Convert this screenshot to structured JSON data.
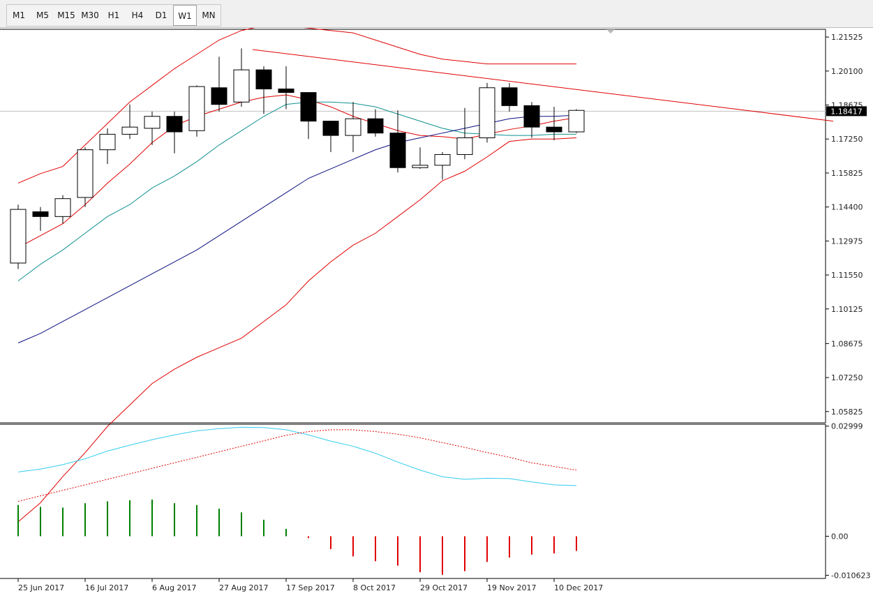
{
  "toolbar": {
    "timeframes": [
      "M1",
      "M5",
      "M15",
      "M30",
      "H1",
      "H4",
      "D1",
      "W1",
      "MN"
    ],
    "active": "W1"
  },
  "current_price_label": "1.18417",
  "chart_data": [
    {
      "type": "candlestick",
      "title": "",
      "price_axis_ticks": [
        "1.21525",
        "1.20100",
        "1.18675",
        "1.17250",
        "1.15825",
        "1.14400",
        "1.12975",
        "1.11550",
        "1.10125",
        "1.08675",
        "1.07250",
        "1.05825"
      ],
      "ylim": [
        1.0535,
        1.2185
      ],
      "x_tick_labels": [
        "25 Jun 2017",
        "16 Jul 2017",
        "6 Aug 2017",
        "27 Aug 2017",
        "17 Sep 2017",
        "8 Oct 2017",
        "29 Oct 2017",
        "19 Nov 2017",
        "10 Dec 2017"
      ],
      "candles": [
        {
          "o": 1.1205,
          "h": 1.145,
          "l": 1.118,
          "c": 1.143
        },
        {
          "o": 1.142,
          "h": 1.144,
          "l": 1.134,
          "c": 1.14
        },
        {
          "o": 1.14,
          "h": 1.149,
          "l": 1.137,
          "c": 1.1475
        },
        {
          "o": 1.148,
          "h": 1.169,
          "l": 1.144,
          "c": 1.168
        },
        {
          "o": 1.168,
          "h": 1.177,
          "l": 1.162,
          "c": 1.1745
        },
        {
          "o": 1.1745,
          "h": 1.187,
          "l": 1.1725,
          "c": 1.1775
        },
        {
          "o": 1.177,
          "h": 1.184,
          "l": 1.17,
          "c": 1.182
        },
        {
          "o": 1.182,
          "h": 1.184,
          "l": 1.1665,
          "c": 1.1755
        },
        {
          "o": 1.176,
          "h": 1.195,
          "l": 1.1735,
          "c": 1.1945
        },
        {
          "o": 1.194,
          "h": 1.207,
          "l": 1.184,
          "c": 1.187
        },
        {
          "o": 1.188,
          "h": 1.2105,
          "l": 1.186,
          "c": 1.2015
        },
        {
          "o": 1.2015,
          "h": 1.203,
          "l": 1.183,
          "c": 1.1935
        },
        {
          "o": 1.1935,
          "h": 1.203,
          "l": 1.185,
          "c": 1.192
        },
        {
          "o": 1.192,
          "h": 1.192,
          "l": 1.1725,
          "c": 1.18
        },
        {
          "o": 1.18,
          "h": 1.18,
          "l": 1.167,
          "c": 1.174
        },
        {
          "o": 1.174,
          "h": 1.188,
          "l": 1.167,
          "c": 1.181
        },
        {
          "o": 1.181,
          "h": 1.185,
          "l": 1.1735,
          "c": 1.175
        },
        {
          "o": 1.175,
          "h": 1.1845,
          "l": 1.1585,
          "c": 1.1605
        },
        {
          "o": 1.1605,
          "h": 1.169,
          "l": 1.16,
          "c": 1.1615
        },
        {
          "o": 1.1615,
          "h": 1.167,
          "l": 1.1555,
          "c": 1.166
        },
        {
          "o": 1.166,
          "h": 1.1855,
          "l": 1.164,
          "c": 1.173
        },
        {
          "o": 1.173,
          "h": 1.196,
          "l": 1.171,
          "c": 1.194
        },
        {
          "o": 1.194,
          "h": 1.196,
          "l": 1.184,
          "c": 1.1865
        },
        {
          "o": 1.1865,
          "h": 1.188,
          "l": 1.173,
          "c": 1.1775
        },
        {
          "o": 1.1775,
          "h": 1.186,
          "l": 1.172,
          "c": 1.1755
        },
        {
          "o": 1.1755,
          "h": 1.185,
          "l": 1.175,
          "c": 1.1845
        }
      ],
      "overlays": {
        "bollinger_upper": [
          1.154,
          1.158,
          1.161,
          1.17,
          1.179,
          1.188,
          1.195,
          1.202,
          1.208,
          1.214,
          1.218,
          1.22,
          1.22,
          1.219,
          1.218,
          1.217,
          1.214,
          1.211,
          1.208,
          1.206,
          1.205,
          1.204,
          1.204,
          1.204,
          1.204,
          1.204
        ],
        "bollinger_middle": [
          1.127,
          1.132,
          1.137,
          1.145,
          1.154,
          1.162,
          1.171,
          1.178,
          1.182,
          1.185,
          1.188,
          1.19,
          1.191,
          1.189,
          1.186,
          1.182,
          1.179,
          1.176,
          1.174,
          1.1735,
          1.1725,
          1.1745,
          1.1765,
          1.178,
          1.18,
          1.1815
        ],
        "bollinger_lower": [
          1.012,
          1.02,
          1.031,
          1.041,
          1.052,
          1.061,
          1.07,
          1.076,
          1.081,
          1.085,
          1.089,
          1.096,
          1.103,
          1.113,
          1.121,
          1.128,
          1.133,
          1.14,
          1.147,
          1.155,
          1.159,
          1.165,
          1.1715,
          1.1725,
          1.1725,
          1.173
        ],
        "ema_teal": [
          1.113,
          1.12,
          1.126,
          1.133,
          1.14,
          1.145,
          1.152,
          1.157,
          1.163,
          1.17,
          1.176,
          1.182,
          1.187,
          1.188,
          1.188,
          1.1875,
          1.186,
          1.183,
          1.18,
          1.177,
          1.175,
          1.1745,
          1.174,
          1.174,
          1.1745,
          1.1745
        ],
        "ema_navy": [
          1.087,
          1.091,
          1.096,
          1.101,
          1.106,
          1.111,
          1.116,
          1.121,
          1.126,
          1.132,
          1.138,
          1.144,
          1.15,
          1.156,
          1.16,
          1.164,
          1.168,
          1.171,
          1.173,
          1.175,
          1.177,
          1.179,
          1.181,
          1.182,
          1.182,
          1.1825
        ],
        "trendline": {
          "from_index": 10.5,
          "from_value": 1.21,
          "to_index": 36.5,
          "to_value": 1.18
        }
      }
    },
    {
      "type": "macd",
      "axis_ticks": [
        "0.02999",
        "0.00",
        "-0.010623"
      ],
      "ylim": [
        -0.0115,
        0.0305
      ],
      "main_line": [
        0.0175,
        0.0183,
        0.0195,
        0.0211,
        0.0232,
        0.0248,
        0.0263,
        0.0276,
        0.0287,
        0.0293,
        0.0297,
        0.0296,
        0.029,
        0.0276,
        0.0259,
        0.0245,
        0.0226,
        0.0202,
        0.018,
        0.0162,
        0.0155,
        0.0158,
        0.0157,
        0.0148,
        0.014,
        0.0138
      ],
      "signal_line": [
        0.0095,
        0.011,
        0.0125,
        0.014,
        0.0155,
        0.017,
        0.0185,
        0.02,
        0.0215,
        0.023,
        0.0245,
        0.026,
        0.0275,
        0.0285,
        0.029,
        0.029,
        0.0285,
        0.0278,
        0.0268,
        0.0255,
        0.0242,
        0.0228,
        0.0215,
        0.02,
        0.019,
        0.018
      ],
      "histogram": [
        0.0085,
        0.008,
        0.0078,
        0.009,
        0.0095,
        0.0098,
        0.01,
        0.009,
        0.0085,
        0.0075,
        0.0065,
        0.0045,
        0.002,
        -0.0005,
        -0.0035,
        -0.0055,
        -0.0068,
        -0.008,
        -0.0098,
        -0.0105,
        -0.0095,
        -0.007,
        -0.0058,
        -0.005,
        -0.0047,
        -0.004
      ]
    }
  ],
  "colors": {
    "bull_body": "#ffffff",
    "bear_body": "#000000",
    "bollinger": "#e00000",
    "trendline": "#e00000",
    "ema_teal": "#109090",
    "ema_navy": "#0b1080",
    "macd_main": "#33ccee",
    "macd_signal": "#e00000",
    "hist_pos": "#008000",
    "hist_neg": "#e00000"
  }
}
